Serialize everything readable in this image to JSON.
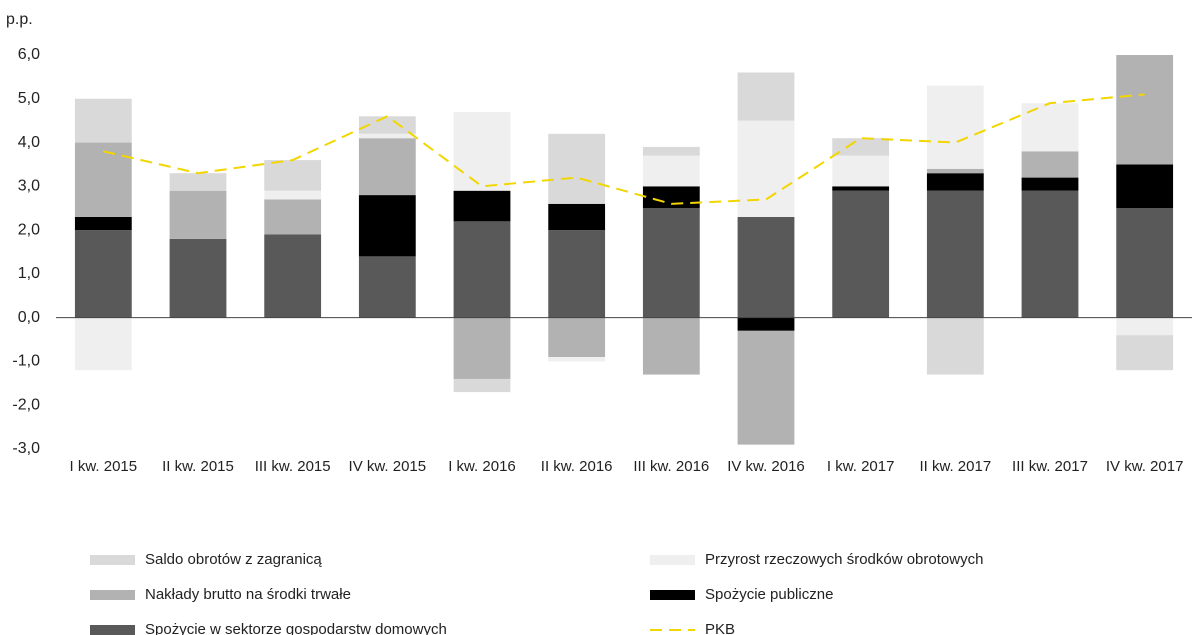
{
  "chart_data": {
    "type": "bar",
    "stacked": true,
    "y_unit_label": "p.p.",
    "categories": [
      "I kw. 2015",
      "II kw. 2015",
      "III kw. 2015",
      "IV kw. 2015",
      "I kw. 2016",
      "II kw. 2016",
      "III kw. 2016",
      "IV kw. 2016",
      "I kw. 2017",
      "II kw. 2017",
      "III kw. 2017",
      "IV kw. 2017"
    ],
    "series": [
      {
        "name": "Spożycie w sektorze gospodarstw domowych",
        "type": "bar",
        "color": "#595959",
        "values": [
          2.0,
          1.8,
          1.9,
          1.4,
          2.2,
          2.0,
          2.5,
          2.3,
          2.9,
          2.9,
          2.9,
          2.5
        ]
      },
      {
        "name": "Spożycie publiczne",
        "type": "bar",
        "color": "#000000",
        "values": [
          0.3,
          0,
          0,
          1.4,
          0.7,
          0.6,
          0.5,
          -0.3,
          0.1,
          0.4,
          0.3,
          1.0
        ]
      },
      {
        "name": "Nakłady brutto na środki trwałe",
        "type": "bar",
        "color": "#b2b2b2",
        "values": [
          1.7,
          1.1,
          0.8,
          1.3,
          -1.4,
          -0.9,
          -1.3,
          -2.6,
          0,
          0.1,
          0.6,
          2.5
        ]
      },
      {
        "name": "Przyrost rzeczowych środków obrotowych",
        "type": "bar",
        "color": "#efefef",
        "values": [
          -1.2,
          0,
          0.2,
          0.1,
          1.8,
          -0.1,
          0.7,
          2.2,
          0.7,
          1.9,
          1.1,
          -0.4
        ]
      },
      {
        "name": "Saldo obrotów z zagranicą",
        "type": "bar",
        "color": "#d9d9d9",
        "values": [
          1.0,
          0.4,
          0.7,
          0.4,
          -0.3,
          1.6,
          0.2,
          1.1,
          0.4,
          -1.3,
          0,
          -0.8
        ]
      },
      {
        "name": "PKB",
        "type": "line",
        "color": "#f2d600",
        "dashed": true,
        "values": [
          3.8,
          3.3,
          3.6,
          4.6,
          3.0,
          3.2,
          2.6,
          2.7,
          4.1,
          4.0,
          4.9,
          5.1
        ]
      }
    ],
    "ylim": [
      -3,
      6
    ],
    "yticks": [
      {
        "value": -3,
        "label": "-3,0"
      },
      {
        "value": -2,
        "label": "-2,0"
      },
      {
        "value": -1,
        "label": "-1,0"
      },
      {
        "value": 0,
        "label": "0,0"
      },
      {
        "value": 1,
        "label": "1,0"
      },
      {
        "value": 2,
        "label": "2,0"
      },
      {
        "value": 3,
        "label": "3,0"
      },
      {
        "value": 4,
        "label": "4,0"
      },
      {
        "value": 5,
        "label": "5,0"
      },
      {
        "value": 6,
        "label": "6,0"
      }
    ],
    "grid": false,
    "legend": "bottom"
  }
}
